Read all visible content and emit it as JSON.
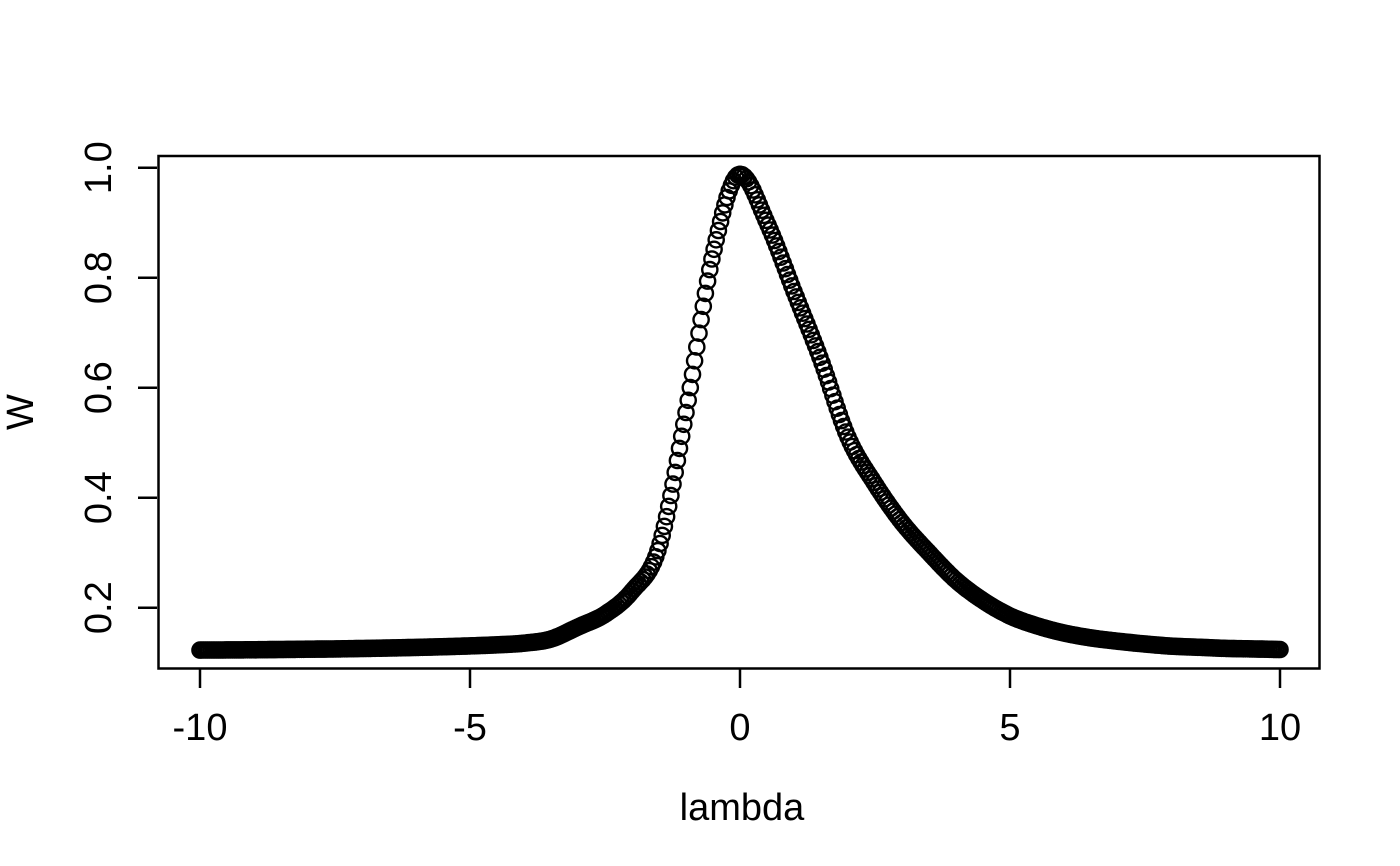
{
  "figure": {
    "background": "#ffffff",
    "foreground": "#000000",
    "title": ""
  },
  "chart_data": {
    "type": "scatter",
    "style": "R-base-plot",
    "marker": "open-circle-pch1",
    "point_color": "#000000",
    "axis_color": "#000000",
    "background": "#ffffff",
    "title": "",
    "xlabel": "lambda",
    "ylabel": "W",
    "grid": "off",
    "legend": "none",
    "xlim": [
      -10.77,
      10.73
    ],
    "ylim": [
      0.089,
      1.021
    ],
    "x_tick_values": [
      -10,
      -5,
      0,
      5,
      10
    ],
    "x_tick_labels": [
      "-10",
      "-5",
      "0",
      "5",
      "10"
    ],
    "y_tick_values": [
      0.2,
      0.4,
      0.6,
      0.8,
      1.0
    ],
    "y_tick_labels": [
      "0.2",
      "0.4",
      "0.6",
      "0.8",
      "1.0"
    ],
    "n_points_drawn": 501,
    "peak": {
      "x": 0,
      "y": 0.988
    },
    "series": [
      {
        "name": "W",
        "x": [
          -10,
          -9.5,
          -9,
          -8.5,
          -8,
          -7.5,
          -7,
          -6.5,
          -6,
          -5.5,
          -5,
          -4.5,
          -4,
          -3.5,
          -3,
          -2.5,
          -2,
          -1.5,
          -1,
          -0.5,
          0,
          0.5,
          1,
          1.5,
          2,
          2.5,
          3,
          3.5,
          4,
          4.5,
          5,
          5.5,
          6,
          6.5,
          7,
          7.5,
          8,
          8.5,
          9,
          9.5,
          10
        ],
        "y": [
          0.123,
          0.1232,
          0.1235,
          0.124,
          0.1245,
          0.125,
          0.1258,
          0.1267,
          0.1278,
          0.129,
          0.1305,
          0.1325,
          0.1355,
          0.143,
          0.165,
          0.188,
          0.23,
          0.31,
          0.555,
          0.843,
          0.988,
          0.9,
          0.775,
          0.65,
          0.51,
          0.425,
          0.355,
          0.3,
          0.25,
          0.213,
          0.185,
          0.167,
          0.154,
          0.145,
          0.139,
          0.134,
          0.13,
          0.128,
          0.126,
          0.125,
          0.124
        ]
      }
    ]
  }
}
